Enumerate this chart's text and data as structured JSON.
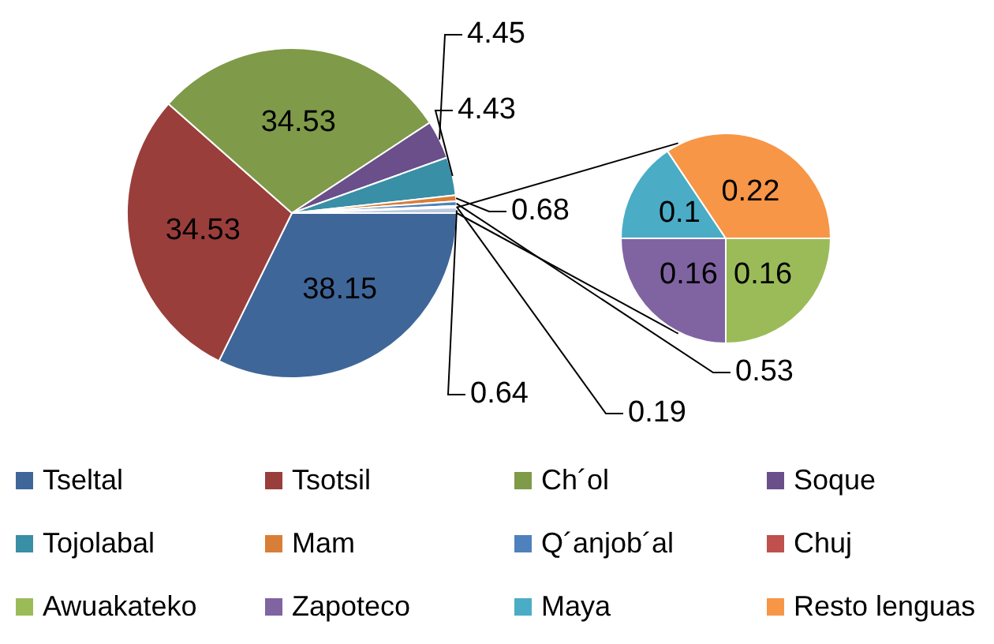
{
  "chart_data": [
    {
      "type": "pie",
      "categories": [
        "Tseltal",
        "Tsotsil",
        "Ch´ol",
        "Soque",
        "Tojolabal",
        "Mam",
        "Q´anjob´al",
        "Chuj",
        null
      ],
      "values": [
        38.15,
        34.53,
        34.53,
        4.45,
        4.43,
        0.68,
        0.53,
        0.19,
        0.64
      ],
      "colors": [
        "#3f6699",
        "#9a3e3b",
        "#7f9a48",
        "#6a4f8a",
        "#388fa6",
        "#d97e36",
        "#4f81bd",
        "#c0504d",
        "#b9c9e0"
      ],
      "data_labels": true,
      "legend": "bottom"
    },
    {
      "type": "pie",
      "categories": [
        "Awuakateko",
        "Zapoteco",
        "Maya",
        "Resto lenguas"
      ],
      "values": [
        0.16,
        0.16,
        0.1,
        0.22
      ],
      "colors": [
        "#9bbb59",
        "#8064a2",
        "#4bacc6",
        "#f79646"
      ],
      "data_labels": true,
      "legend": "bottom"
    }
  ]
}
